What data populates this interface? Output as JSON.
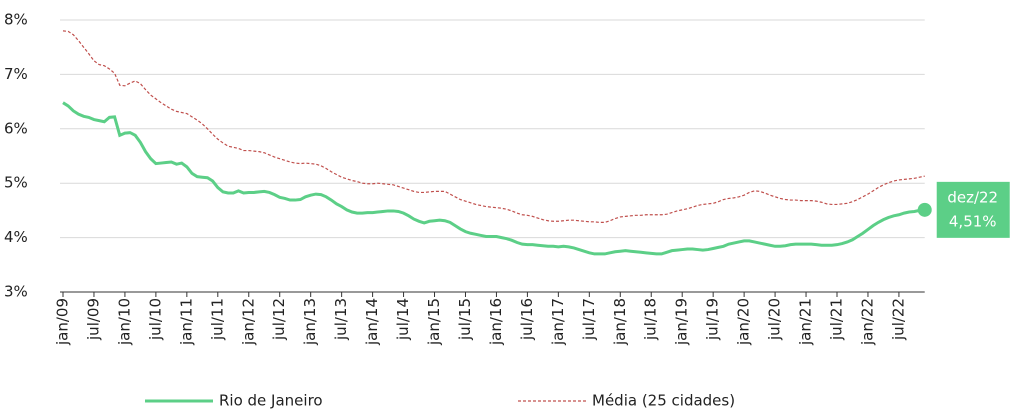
{
  "chart_data": {
    "type": "line",
    "categories": [
      "jan/09",
      null,
      null,
      null,
      null,
      null,
      "jul/09",
      null,
      null,
      null,
      null,
      null,
      "jan/10",
      null,
      null,
      null,
      null,
      null,
      "jul/10",
      null,
      null,
      null,
      null,
      null,
      "jan/11",
      null,
      null,
      null,
      null,
      null,
      "jul/11",
      null,
      null,
      null,
      null,
      null,
      "jan/12",
      null,
      null,
      null,
      null,
      null,
      "jul/12",
      null,
      null,
      null,
      null,
      null,
      "jan/13",
      null,
      null,
      null,
      null,
      null,
      "jul/13",
      null,
      null,
      null,
      null,
      null,
      "jan/14",
      null,
      null,
      null,
      null,
      null,
      "jul/14",
      null,
      null,
      null,
      null,
      null,
      "jan/15",
      null,
      null,
      null,
      null,
      null,
      "jul/15",
      null,
      null,
      null,
      null,
      null,
      "jan/16",
      null,
      null,
      null,
      null,
      null,
      "jul/16",
      null,
      null,
      null,
      null,
      null,
      "jan/17",
      null,
      null,
      null,
      null,
      null,
      "jul/17",
      null,
      null,
      null,
      null,
      null,
      "jan/18",
      null,
      null,
      null,
      null,
      null,
      "jul/18",
      null,
      null,
      null,
      null,
      null,
      "jan/19",
      null,
      null,
      null,
      null,
      null,
      "jul/19",
      null,
      null,
      null,
      null,
      null,
      "jan/20",
      null,
      null,
      null,
      null,
      null,
      "jul/20",
      null,
      null,
      null,
      null,
      null,
      "jan/21",
      null,
      null,
      null,
      null,
      null,
      "jul/21",
      null,
      null,
      null,
      null,
      null,
      "jan/22",
      null,
      null,
      null,
      null,
      null,
      "jul/22",
      null,
      null,
      null,
      null,
      null
    ],
    "series": [
      {
        "name": "Rio de Janeiro",
        "color": "#5ccf87",
        "dashed": false,
        "values": [
          6.48,
          6.42,
          6.33,
          6.27,
          6.23,
          6.21,
          6.17,
          6.15,
          6.13,
          6.21,
          6.22,
          5.88,
          5.92,
          5.93,
          5.88,
          5.75,
          5.58,
          5.45,
          5.36,
          5.37,
          5.38,
          5.39,
          5.35,
          5.37,
          5.3,
          5.18,
          5.12,
          5.11,
          5.1,
          5.04,
          4.92,
          4.84,
          4.82,
          4.82,
          4.86,
          4.82,
          4.83,
          4.83,
          4.84,
          4.85,
          4.83,
          4.79,
          4.74,
          4.72,
          4.69,
          4.69,
          4.7,
          4.75,
          4.78,
          4.8,
          4.79,
          4.75,
          4.69,
          4.62,
          4.57,
          4.51,
          4.47,
          4.45,
          4.45,
          4.46,
          4.46,
          4.47,
          4.48,
          4.49,
          4.49,
          4.48,
          4.45,
          4.4,
          4.34,
          4.3,
          4.27,
          4.3,
          4.31,
          4.32,
          4.31,
          4.28,
          4.22,
          4.16,
          4.11,
          4.08,
          4.06,
          4.04,
          4.02,
          4.02,
          4.02,
          4.0,
          3.98,
          3.95,
          3.91,
          3.88,
          3.87,
          3.87,
          3.86,
          3.85,
          3.84,
          3.84,
          3.83,
          3.84,
          3.83,
          3.81,
          3.78,
          3.75,
          3.72,
          3.7,
          3.7,
          3.7,
          3.72,
          3.74,
          3.75,
          3.76,
          3.75,
          3.74,
          3.73,
          3.72,
          3.71,
          3.7,
          3.7,
          3.73,
          3.76,
          3.77,
          3.78,
          3.79,
          3.79,
          3.78,
          3.77,
          3.78,
          3.8,
          3.82,
          3.84,
          3.88,
          3.9,
          3.92,
          3.94,
          3.94,
          3.92,
          3.9,
          3.88,
          3.86,
          3.84,
          3.84,
          3.85,
          3.87,
          3.88,
          3.88,
          3.88,
          3.88,
          3.87,
          3.86,
          3.86,
          3.86,
          3.87,
          3.89,
          3.92,
          3.96,
          4.02,
          4.08,
          4.15,
          4.22,
          4.28,
          4.33,
          4.37,
          4.4,
          4.42,
          4.45,
          4.47,
          4.48,
          4.5,
          4.51
        ],
        "value_labels": [
          null,
          null,
          null,
          null,
          null,
          null,
          null,
          null,
          null,
          null,
          null,
          null,
          null,
          null,
          null,
          null,
          null,
          null,
          null,
          null,
          null,
          null,
          null,
          null,
          null,
          null,
          null,
          null,
          null,
          null,
          null,
          null,
          null,
          null,
          null,
          null,
          null,
          null,
          null,
          null,
          null,
          null,
          null,
          null,
          null,
          null,
          null,
          null,
          null,
          null,
          null,
          null,
          null,
          null,
          null,
          null,
          null,
          null,
          null,
          null,
          null,
          null,
          null,
          null,
          null,
          null,
          null,
          null,
          null,
          null,
          null,
          null,
          null,
          null,
          null,
          null,
          null,
          null,
          null,
          null,
          null,
          null,
          null,
          null,
          null,
          null,
          null,
          null,
          null,
          null,
          null,
          null,
          null,
          null,
          null,
          null,
          null,
          null,
          null,
          null,
          null,
          null,
          null,
          null,
          null,
          null,
          null,
          null,
          null,
          null,
          null,
          null,
          null,
          null,
          null,
          null,
          null,
          null,
          null,
          null,
          null,
          null,
          null,
          null,
          null,
          null,
          null,
          null,
          null,
          null,
          null,
          null,
          null,
          null,
          null,
          null,
          null,
          null,
          null,
          null,
          null,
          null,
          null,
          null,
          null,
          null,
          null,
          null,
          null,
          null,
          null,
          null,
          null,
          null,
          null,
          null,
          null,
          null,
          null,
          null,
          null,
          null,
          null,
          null,
          null,
          null,
          null,
          "4,51%"
        ]
      },
      {
        "name": "Média (25 cidades)",
        "color": "#c0504d",
        "dashed": true,
        "values": [
          7.8,
          7.79,
          7.73,
          7.62,
          7.5,
          7.38,
          7.25,
          7.18,
          7.16,
          7.1,
          7.02,
          6.8,
          6.79,
          6.84,
          6.88,
          6.83,
          6.72,
          6.62,
          6.55,
          6.48,
          6.42,
          6.36,
          6.32,
          6.3,
          6.28,
          6.22,
          6.16,
          6.09,
          6.0,
          5.9,
          5.81,
          5.74,
          5.68,
          5.66,
          5.64,
          5.6,
          5.6,
          5.59,
          5.58,
          5.56,
          5.52,
          5.48,
          5.45,
          5.42,
          5.39,
          5.37,
          5.36,
          5.37,
          5.36,
          5.35,
          5.32,
          5.27,
          5.21,
          5.16,
          5.11,
          5.08,
          5.05,
          5.03,
          5.0,
          4.99,
          4.99,
          5.0,
          4.99,
          4.98,
          4.97,
          4.94,
          4.91,
          4.88,
          4.85,
          4.83,
          4.83,
          4.84,
          4.85,
          4.85,
          4.85,
          4.8,
          4.75,
          4.7,
          4.67,
          4.64,
          4.61,
          4.59,
          4.57,
          4.56,
          4.55,
          4.54,
          4.52,
          4.49,
          4.45,
          4.42,
          4.41,
          4.39,
          4.36,
          4.33,
          4.31,
          4.3,
          4.3,
          4.31,
          4.32,
          4.32,
          4.31,
          4.3,
          4.29,
          4.29,
          4.28,
          4.28,
          4.31,
          4.35,
          4.38,
          4.39,
          4.4,
          4.41,
          4.41,
          4.42,
          4.42,
          4.42,
          4.42,
          4.43,
          4.46,
          4.49,
          4.51,
          4.53,
          4.56,
          4.59,
          4.61,
          4.62,
          4.63,
          4.66,
          4.7,
          4.72,
          4.73,
          4.75,
          4.78,
          4.83,
          4.86,
          4.85,
          4.82,
          4.78,
          4.75,
          4.72,
          4.7,
          4.69,
          4.69,
          4.68,
          4.68,
          4.68,
          4.67,
          4.65,
          4.62,
          4.61,
          4.61,
          4.62,
          4.63,
          4.66,
          4.7,
          4.75,
          4.8,
          4.86,
          4.92,
          4.97,
          5.01,
          5.04,
          5.06,
          5.07,
          5.08,
          5.09,
          5.11,
          5.13
        ]
      }
    ],
    "annotation": "dez/22",
    "ylim": [
      3,
      8
    ],
    "yticks": [
      {
        "value": 3,
        "label": "3%"
      },
      {
        "value": 4,
        "label": "4%"
      },
      {
        "value": 5,
        "label": "5%"
      },
      {
        "value": 6,
        "label": "6%"
      },
      {
        "value": 7,
        "label": "7%"
      },
      {
        "value": 8,
        "label": "8%"
      }
    ],
    "grid": true,
    "legend": "bottom"
  }
}
